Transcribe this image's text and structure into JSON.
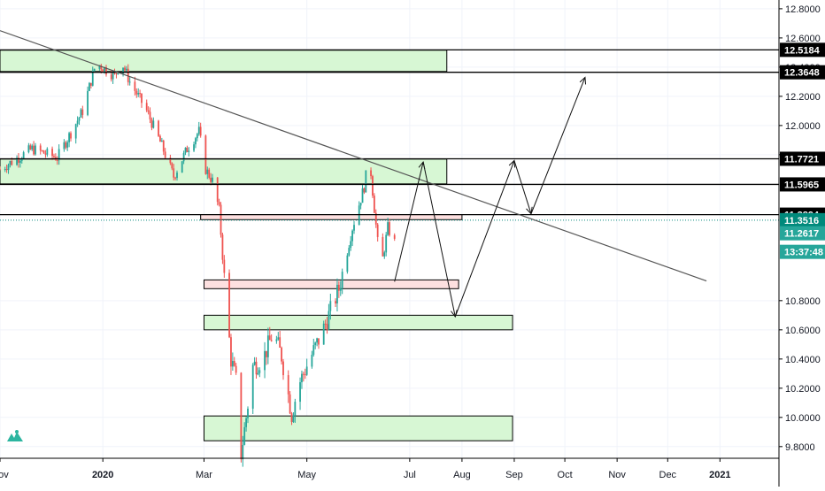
{
  "chart_data": {
    "type": "candlestick",
    "title": "",
    "x_range": [
      "2019-11-01",
      "2021-02-05"
    ],
    "y_range": [
      9.72,
      12.86
    ],
    "x_ticks": [
      {
        "date": "2019-11-01",
        "label": "Nov"
      },
      {
        "date": "2020-01-01",
        "label": "2020",
        "bold": true
      },
      {
        "date": "2020-03-01",
        "label": "Mar"
      },
      {
        "date": "2020-05-01",
        "label": "May"
      },
      {
        "date": "2020-07-01",
        "label": "Jul"
      },
      {
        "date": "2020-08-01",
        "label": "Aug"
      },
      {
        "date": "2020-09-01",
        "label": "Sep"
      },
      {
        "date": "2020-10-01",
        "label": "Oct"
      },
      {
        "date": "2020-11-01",
        "label": "Nov"
      },
      {
        "date": "2020-12-01",
        "label": "Dec"
      },
      {
        "date": "2021-01-01",
        "label": "2021",
        "bold": true
      }
    ],
    "y_ticks": [
      {
        "value": 12.8,
        "label": "12.8000"
      },
      {
        "value": 12.6,
        "label": "12.6000"
      },
      {
        "value": 12.4,
        "label": "12.4000"
      },
      {
        "value": 12.2,
        "label": "12.2000"
      },
      {
        "value": 12.0,
        "label": "12.0000"
      },
      {
        "value": 11.8,
        "label": "11.8000"
      },
      {
        "value": 10.8,
        "label": "10.8000"
      },
      {
        "value": 10.6,
        "label": "10.6000"
      },
      {
        "value": 10.4,
        "label": "10.4000"
      },
      {
        "value": 10.2,
        "label": "10.2000"
      },
      {
        "value": 10.0,
        "label": "10.0000"
      },
      {
        "value": 9.8,
        "label": "9.8000"
      }
    ],
    "price_labels": [
      {
        "value": 12.5184,
        "label": "12.5184"
      },
      {
        "value": 12.3648,
        "label": "12.3648"
      },
      {
        "value": 11.7721,
        "label": "11.7721"
      },
      {
        "value": 11.5965,
        "label": "11.5965"
      },
      {
        "value": 11.3894,
        "label": "11.3894"
      }
    ],
    "last_price": {
      "value": 11.3516,
      "label": "11.3516",
      "color": "#00897b"
    },
    "current_price": {
      "value": 11.2617,
      "label": "11.2617",
      "color": "#26a69a"
    },
    "countdown": {
      "label": "13:37:48",
      "color": "#26a69a"
    },
    "candle_path": [
      [
        "2019-11-01",
        11.7
      ],
      [
        "2019-11-20",
        11.84
      ],
      [
        "2019-12-05",
        11.78
      ],
      [
        "2019-12-20",
        12.1
      ],
      [
        "2019-12-28",
        12.43
      ],
      [
        "2020-01-08",
        12.34
      ],
      [
        "2020-01-12",
        12.44
      ],
      [
        "2020-01-17",
        12.3
      ],
      [
        "2020-01-27",
        12.1
      ],
      [
        "2020-02-05",
        11.86
      ],
      [
        "2020-02-12",
        11.65
      ],
      [
        "2020-02-20",
        11.84
      ],
      [
        "2020-02-27",
        11.96
      ],
      [
        "2020-03-02",
        11.7
      ],
      [
        "2020-03-06",
        11.62
      ],
      [
        "2020-03-10",
        11.42
      ],
      [
        "2020-03-14",
        10.8
      ],
      [
        "2020-03-17",
        10.4
      ],
      [
        "2020-03-21",
        10.2
      ],
      [
        "2020-03-23",
        9.75
      ],
      [
        "2020-03-26",
        10.0
      ],
      [
        "2020-03-30",
        10.35
      ],
      [
        "2020-04-05",
        10.4
      ],
      [
        "2020-04-11",
        10.58
      ],
      [
        "2020-04-16",
        10.42
      ],
      [
        "2020-04-22",
        10.02
      ],
      [
        "2020-04-26",
        10.22
      ],
      [
        "2020-05-02",
        10.38
      ],
      [
        "2020-05-10",
        10.58
      ],
      [
        "2020-05-20",
        10.88
      ],
      [
        "2020-05-28",
        11.3
      ],
      [
        "2020-06-04",
        11.58
      ],
      [
        "2020-06-07",
        11.8
      ],
      [
        "2020-06-09",
        11.55
      ],
      [
        "2020-06-12",
        11.2
      ],
      [
        "2020-06-14",
        11.02
      ],
      [
        "2020-06-18",
        11.3
      ],
      [
        "2020-06-22",
        11.2
      ]
    ],
    "candle_range": [
      "2019-11-01",
      "2020-06-22"
    ],
    "support_resistance_lines": [
      {
        "value": 12.5184
      },
      {
        "value": 12.3648
      },
      {
        "value": 11.7721
      },
      {
        "value": 11.5965
      },
      {
        "value": 11.3894
      }
    ],
    "zones": [
      {
        "type": "demand",
        "from": "2019-11-01",
        "to": "2020-07-23",
        "top": 12.516,
        "bottom": 12.37,
        "fill": "#d7f7d4"
      },
      {
        "type": "demand",
        "from": "2019-11-01",
        "to": "2020-07-23",
        "top": 11.77,
        "bottom": 11.6,
        "fill": "#d7f7d4"
      },
      {
        "type": "supply",
        "from": "2020-02-28",
        "to": "2020-08-01",
        "top": 11.39,
        "bottom": 11.355,
        "fill": "#fde0e0"
      },
      {
        "type": "supply",
        "from": "2020-03-01",
        "to": "2020-07-30",
        "top": 10.942,
        "bottom": 10.882,
        "fill": "#fde0e0"
      },
      {
        "type": "demand",
        "from": "2020-03-01",
        "to": "2020-08-31",
        "top": 10.7,
        "bottom": 10.6,
        "fill": "#d7f7d4"
      },
      {
        "type": "demand",
        "from": "2020-03-01",
        "to": "2020-08-31",
        "top": 10.01,
        "bottom": 9.84,
        "fill": "#d7f7d4"
      }
    ],
    "trendline": [
      [
        "2019-11-01",
        12.65
      ],
      [
        "2020-12-24",
        10.935
      ]
    ],
    "projection_path": [
      [
        "2020-06-22",
        10.93
      ],
      [
        "2020-07-09",
        11.75
      ],
      [
        "2020-07-28",
        10.69
      ],
      [
        "2020-09-01",
        11.76
      ],
      [
        "2020-09-11",
        11.395
      ],
      [
        "2020-10-13",
        12.33
      ]
    ],
    "colors": {
      "up": "#26a69a",
      "down": "#ef5350",
      "grid": "#f0f3fa",
      "axis_text": "#131722",
      "line": "#000000",
      "trendline": "#555555"
    }
  },
  "logo": {
    "name": "tradingview-logo",
    "color": "#2cb5a0"
  }
}
